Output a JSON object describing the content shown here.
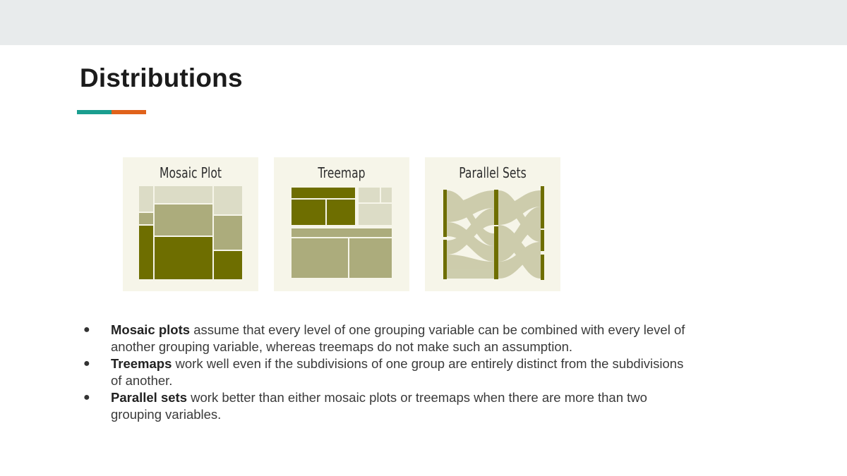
{
  "slide": {
    "title": "Distributions",
    "accent_colors": [
      "#1a9e8f",
      "#e0621b"
    ]
  },
  "figures": [
    {
      "title": "Mosaic Plot",
      "icon": "mosaic-plot-illustration"
    },
    {
      "title": "Treemap",
      "icon": "treemap-illustration"
    },
    {
      "title": "Parallel Sets",
      "icon": "parallel-sets-illustration"
    }
  ],
  "palette": {
    "panel_bg": "#f6f5e9",
    "dark": "#6e6e00",
    "medium": "#acac7c",
    "light": "#dcdcc6"
  },
  "bullets": [
    {
      "bold": "Mosaic plots",
      "text": " assume that every level of one grouping variable can be combined with every level of another grouping variable, whereas treemaps do not make such an assumption."
    },
    {
      "bold": "Treemaps",
      "text": " work well even if the subdivisions of one group are entirely distinct from the subdivisions of another."
    },
    {
      "bold": "Parallel sets",
      "text": " work better than either mosaic plots or treemaps when there are more than two grouping variables."
    }
  ]
}
